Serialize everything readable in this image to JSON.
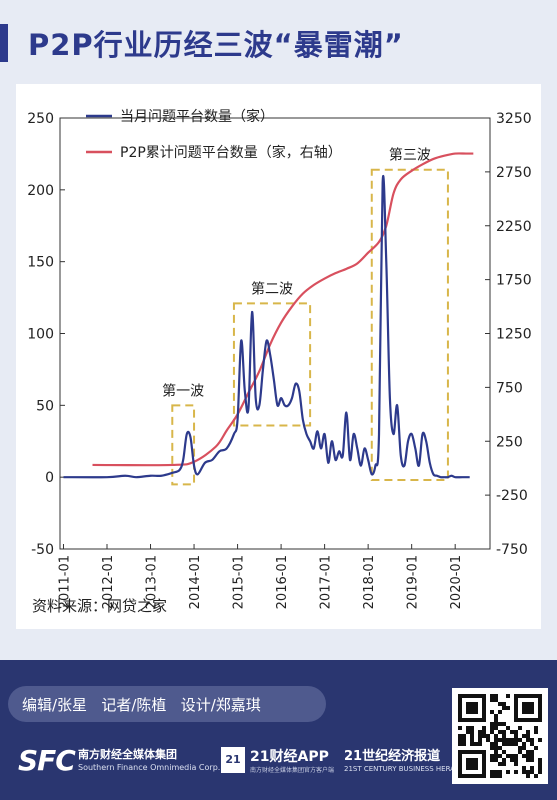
{
  "header": {
    "title": "P2P行业历经三波“暴雷潮”"
  },
  "source_label": "资料来源：网贷之家",
  "colors": {
    "monthly": "#2d3a8c",
    "cumulative": "#d8505e",
    "box": "#d8b64a",
    "accent": "#2d3a8c"
  },
  "chart_data": {
    "type": "line",
    "title": "",
    "x_ticks": [
      "2011-01",
      "2012-01",
      "2013-01",
      "2014-01",
      "2015-01",
      "2016-01",
      "2017-01",
      "2018-01",
      "2019-01",
      "2020-01"
    ],
    "left_axis": {
      "ticks": [
        -50,
        0,
        50,
        100,
        150,
        200,
        250
      ],
      "range": [
        -50,
        250
      ]
    },
    "right_axis": {
      "ticks": [
        -750,
        -250,
        250,
        750,
        1250,
        1750,
        2250,
        2750,
        3250
      ],
      "range": [
        -750,
        3250
      ]
    },
    "legend": {
      "placement": "top-left"
    },
    "annotations": [
      {
        "label": "第一波",
        "x0": "2013-07",
        "x1": "2014-01",
        "y0": -5,
        "y1": 50
      },
      {
        "label": "第二波",
        "x0": "2014-12",
        "x1": "2016-09",
        "y0": 36,
        "y1": 121
      },
      {
        "label": "第三波",
        "x0": "2018-02",
        "x1": "2019-11",
        "y0": -2,
        "y1": 214
      }
    ],
    "series": [
      {
        "name": "当月问题平台数量（家）",
        "axis": "left",
        "x": [
          "2011-01",
          "2012-01",
          "2012-06",
          "2012-09",
          "2013-01",
          "2013-04",
          "2013-07",
          "2013-09",
          "2013-10",
          "2013-11",
          "2013-12",
          "2014-01",
          "2014-02",
          "2014-04",
          "2014-06",
          "2014-08",
          "2014-10",
          "2014-12",
          "2015-01",
          "2015-02",
          "2015-03",
          "2015-04",
          "2015-05",
          "2015-06",
          "2015-07",
          "2015-08",
          "2015-09",
          "2015-10",
          "2015-11",
          "2015-12",
          "2016-01",
          "2016-02",
          "2016-03",
          "2016-04",
          "2016-05",
          "2016-06",
          "2016-07",
          "2016-08",
          "2016-09",
          "2016-10",
          "2016-11",
          "2016-12",
          "2017-01",
          "2017-02",
          "2017-03",
          "2017-04",
          "2017-05",
          "2017-06",
          "2017-07",
          "2017-08",
          "2017-09",
          "2017-10",
          "2017-11",
          "2017-12",
          "2018-01",
          "2018-02",
          "2018-03",
          "2018-04",
          "2018-05",
          "2018-06",
          "2018-07",
          "2018-08",
          "2018-09",
          "2018-10",
          "2018-11",
          "2018-12",
          "2019-01",
          "2019-02",
          "2019-03",
          "2019-04",
          "2019-05",
          "2019-06",
          "2019-07",
          "2019-08",
          "2019-09",
          "2019-10",
          "2019-11",
          "2019-12",
          "2020-01",
          "2020-03",
          "2020-05"
        ],
        "values": [
          0,
          0,
          1,
          0,
          1,
          1,
          3,
          5,
          12,
          30,
          28,
          8,
          2,
          10,
          12,
          18,
          20,
          30,
          40,
          95,
          60,
          48,
          115,
          55,
          50,
          75,
          95,
          85,
          68,
          50,
          55,
          50,
          50,
          55,
          65,
          60,
          40,
          30,
          25,
          20,
          32,
          20,
          30,
          10,
          25,
          12,
          18,
          15,
          45,
          12,
          30,
          20,
          8,
          20,
          12,
          2,
          8,
          30,
          205,
          150,
          55,
          30,
          50,
          15,
          8,
          25,
          30,
          20,
          8,
          30,
          25,
          10,
          2,
          1,
          0,
          0,
          0,
          1,
          0,
          0,
          0
        ]
      },
      {
        "name": "P2P累计问题平台数量（家，右轴）",
        "axis": "right",
        "x": [
          "2011-09",
          "2013-07",
          "2014-01",
          "2014-07",
          "2014-10",
          "2015-01",
          "2015-04",
          "2015-07",
          "2015-10",
          "2016-01",
          "2016-04",
          "2016-07",
          "2016-10",
          "2017-01",
          "2017-04",
          "2017-07",
          "2017-10",
          "2018-01",
          "2018-04",
          "2018-06",
          "2018-08",
          "2018-10",
          "2019-01",
          "2019-04",
          "2019-07",
          "2019-10",
          "2020-01",
          "2020-04",
          "2020-06"
        ],
        "values": [
          30,
          30,
          60,
          200,
          350,
          500,
          700,
          900,
          1150,
          1350,
          1500,
          1620,
          1700,
          1760,
          1810,
          1850,
          1900,
          2000,
          2100,
          2250,
          2550,
          2680,
          2760,
          2820,
          2870,
          2900,
          2920,
          2920,
          2920
        ]
      }
    ]
  }
}
